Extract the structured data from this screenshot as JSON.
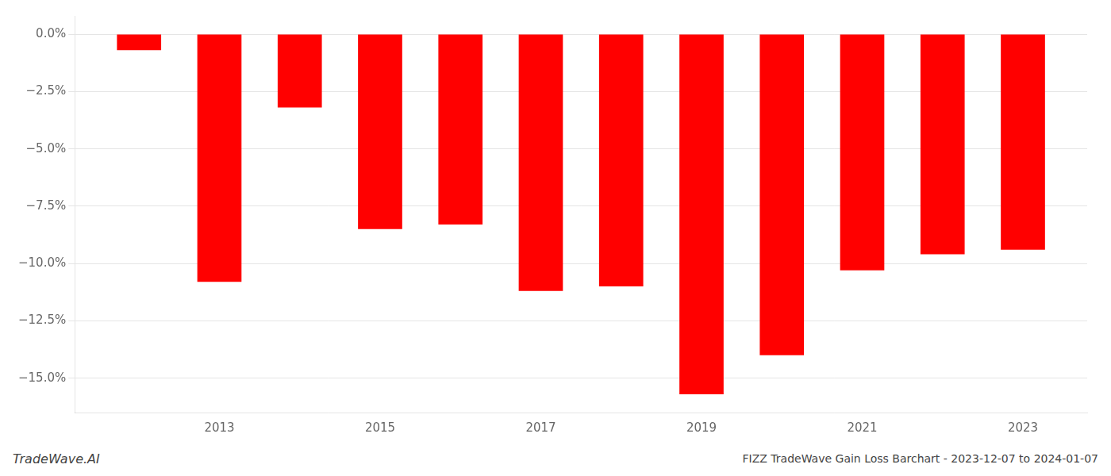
{
  "chart_data": {
    "type": "bar",
    "title": "FIZZ TradeWave Gain Loss Barchart - 2023-12-07 to 2024-01-07",
    "annotations": [
      "TradeWave.AI"
    ],
    "x": [
      2012,
      2013,
      2014,
      2015,
      2016,
      2017,
      2018,
      2019,
      2020,
      2021,
      2022,
      2023
    ],
    "values": [
      -0.7,
      -10.8,
      -3.2,
      -8.5,
      -8.3,
      -11.2,
      -11.0,
      -15.7,
      -14.0,
      -10.3,
      -9.6,
      -9.4
    ],
    "color": "#ff0000",
    "xlim": [
      2011.2,
      2023.8
    ],
    "xticks": [
      2013,
      2015,
      2017,
      2019,
      2021,
      2023
    ],
    "ylim": [
      -16.5,
      0.8
    ],
    "yticks": [
      {
        "value": 0,
        "label": "0.0%"
      },
      {
        "value": -2.5,
        "label": "−2.5%"
      },
      {
        "value": -5,
        "label": "−5.0%"
      },
      {
        "value": -7.5,
        "label": "−7.5%"
      },
      {
        "value": -10,
        "label": "−10.0%"
      },
      {
        "value": -12.5,
        "label": "−12.5%"
      },
      {
        "value": -15,
        "label": "−15.0%"
      }
    ],
    "grid": "y"
  }
}
